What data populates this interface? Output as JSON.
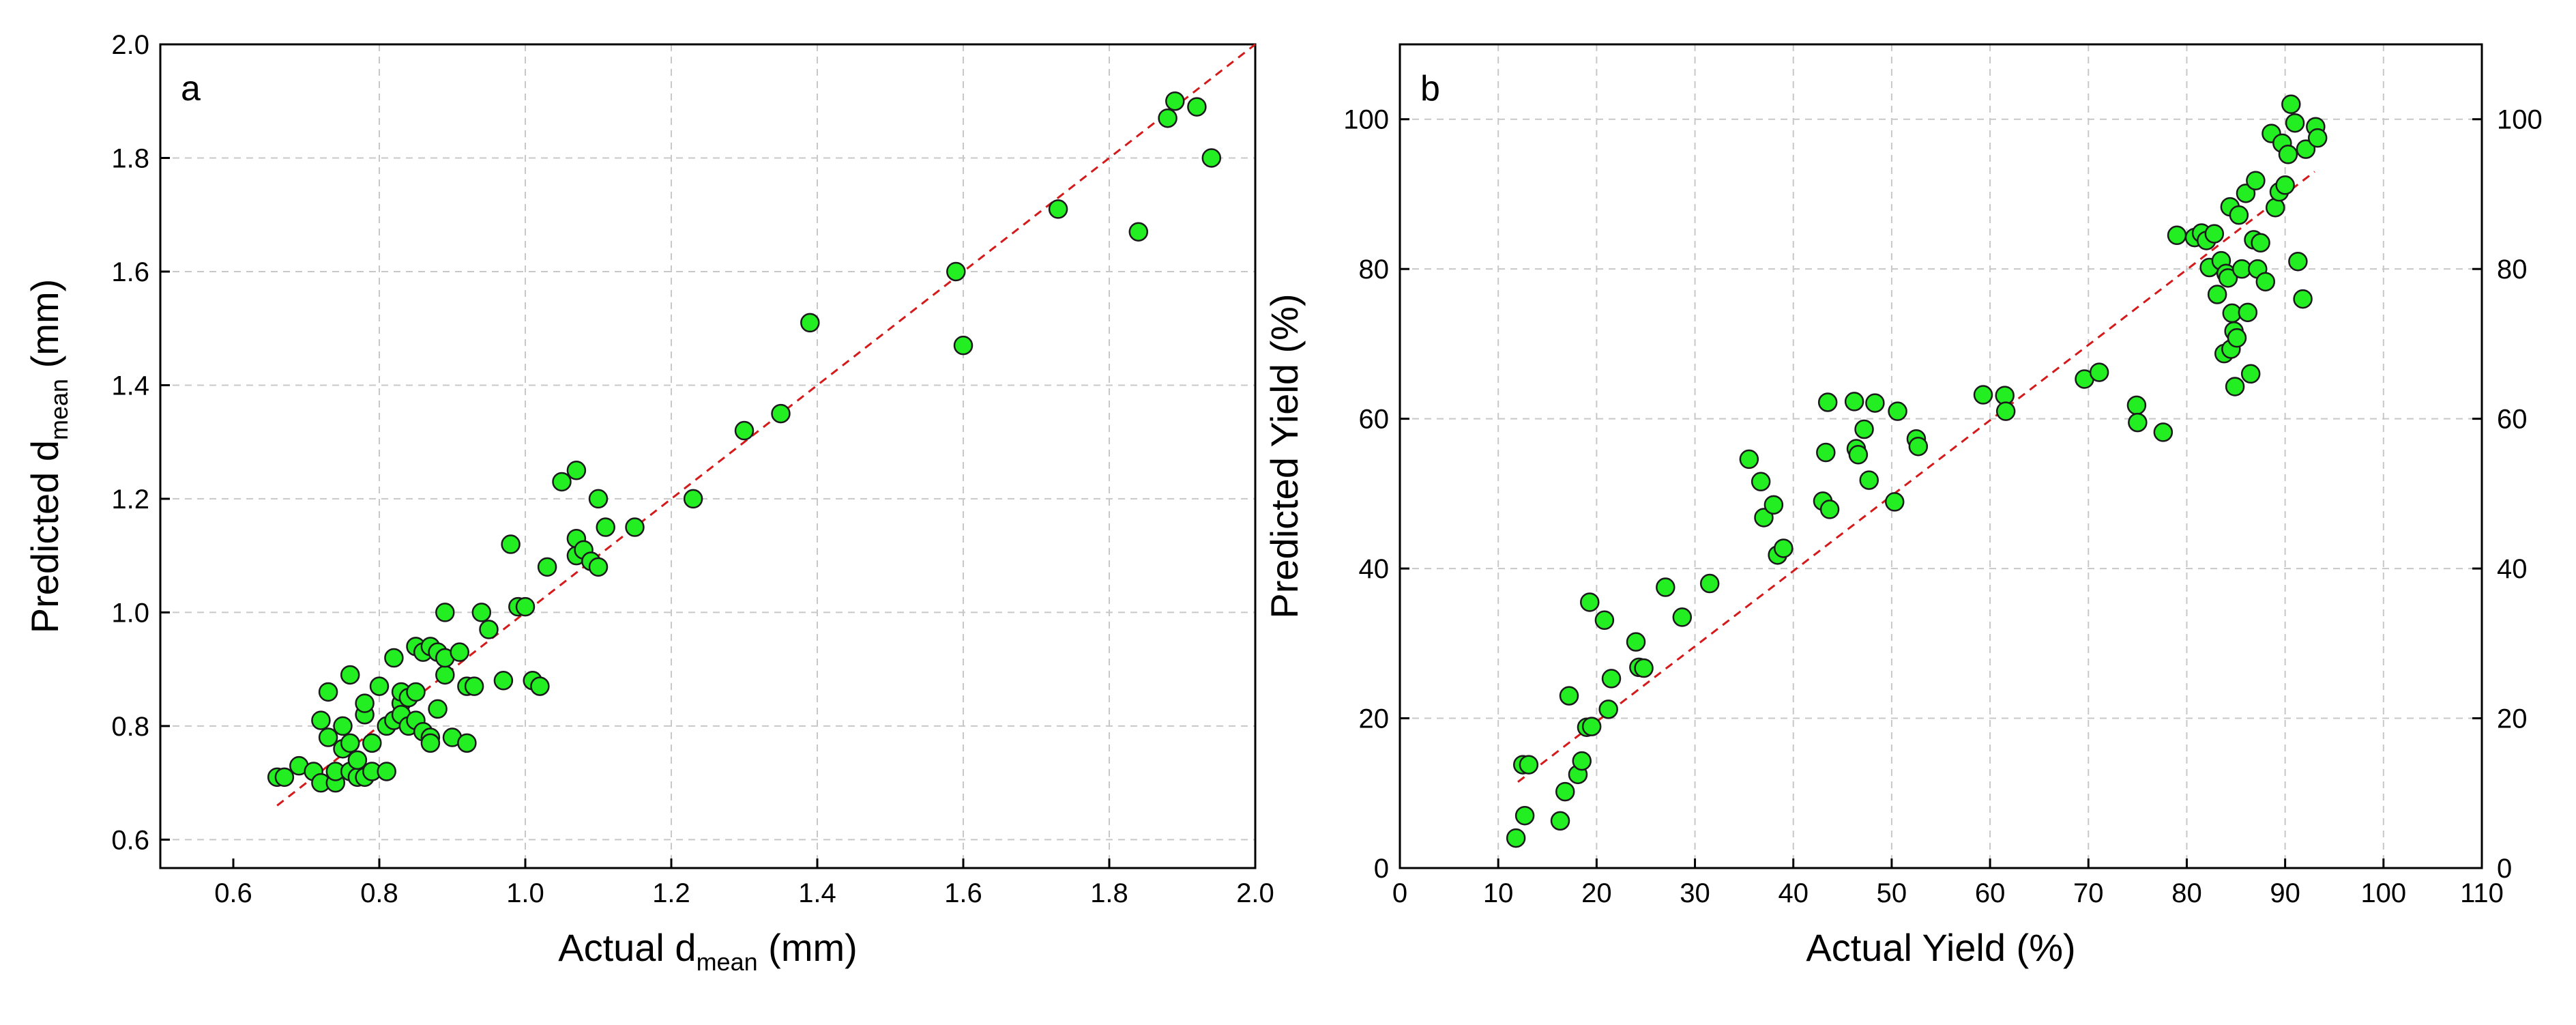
{
  "chart_data": [
    {
      "type": "scatter",
      "panel_label": "a",
      "xlabel": {
        "main": "Actual d",
        "sub": "mean",
        "unit": " (mm)"
      },
      "ylabel": {
        "main": "Predicted d",
        "sub": "mean",
        "unit": " (mm)"
      },
      "xlim": [
        0.5,
        2.0
      ],
      "ylim": [
        0.55,
        2.0
      ],
      "xticks": [
        0.6,
        0.8,
        1.0,
        1.2,
        1.4,
        1.6,
        1.8,
        2.0
      ],
      "xtick_labels": [
        "0.6",
        "0.8",
        "1.0",
        "1.2",
        "1.4",
        "1.6",
        "1.8",
        "2.0"
      ],
      "yticks": [
        0.6,
        0.8,
        1.0,
        1.2,
        1.4,
        1.6,
        1.8,
        2.0
      ],
      "ytick_labels": [
        "0.6",
        "0.8",
        "1.0",
        "1.2",
        "1.4",
        "1.6",
        "1.8",
        "2.0"
      ],
      "xgrid": [
        0.8,
        1.0,
        1.2,
        1.4,
        1.6,
        1.8
      ],
      "ygrid": [
        0.6,
        0.8,
        1.0,
        1.2,
        1.4,
        1.6,
        1.8
      ],
      "fit_line": {
        "x": [
          0.66,
          2.0
        ],
        "y": [
          0.66,
          2.0
        ]
      },
      "x": [
        0.66,
        0.67,
        0.69,
        0.71,
        0.72,
        0.72,
        0.73,
        0.73,
        0.74,
        0.74,
        0.75,
        0.75,
        0.76,
        0.76,
        0.76,
        0.77,
        0.77,
        0.78,
        0.78,
        0.78,
        0.79,
        0.79,
        0.8,
        0.81,
        0.81,
        0.82,
        0.82,
        0.83,
        0.83,
        0.83,
        0.84,
        0.84,
        0.85,
        0.85,
        0.85,
        0.86,
        0.86,
        0.87,
        0.87,
        0.87,
        0.88,
        0.88,
        0.89,
        0.89,
        0.89,
        0.9,
        0.91,
        0.92,
        0.92,
        0.93,
        0.94,
        0.95,
        0.97,
        0.98,
        0.99,
        1.0,
        1.01,
        1.02,
        1.03,
        1.05,
        1.07,
        1.07,
        1.07,
        1.08,
        1.09,
        1.1,
        1.1,
        1.11,
        1.15,
        1.23,
        1.3,
        1.35,
        1.39,
        1.59,
        1.6,
        1.73,
        1.84,
        1.88,
        1.89,
        1.92,
        1.94
      ],
      "y": [
        0.71,
        0.71,
        0.73,
        0.72,
        0.7,
        0.81,
        0.86,
        0.78,
        0.7,
        0.72,
        0.8,
        0.76,
        0.77,
        0.89,
        0.72,
        0.71,
        0.74,
        0.82,
        0.84,
        0.71,
        0.72,
        0.77,
        0.87,
        0.72,
        0.8,
        0.92,
        0.81,
        0.84,
        0.86,
        0.82,
        0.85,
        0.8,
        0.94,
        0.81,
        0.86,
        0.93,
        0.79,
        0.78,
        0.77,
        0.94,
        0.83,
        0.93,
        0.89,
        0.92,
        1.0,
        0.78,
        0.93,
        0.87,
        0.77,
        0.87,
        1.0,
        0.97,
        0.88,
        1.12,
        1.01,
        1.01,
        0.88,
        0.87,
        1.08,
        1.23,
        1.25,
        1.13,
        1.1,
        1.11,
        1.09,
        1.2,
        1.08,
        1.15,
        1.15,
        1.2,
        1.32,
        1.35,
        1.51,
        1.6,
        1.47,
        1.71,
        1.67,
        1.87,
        1.9,
        1.89,
        1.8
      ]
    },
    {
      "type": "scatter",
      "panel_label": "b",
      "xlabel": "Actual Yield (%)",
      "ylabel": "Predicted Yield (%)",
      "xlim": [
        0,
        110
      ],
      "ylim": [
        0,
        110
      ],
      "xticks": [
        0,
        10,
        20,
        30,
        40,
        50,
        60,
        70,
        80,
        90,
        100,
        110
      ],
      "xtick_labels": [
        "0",
        "10",
        "20",
        "30",
        "40",
        "50",
        "60",
        "70",
        "80",
        "90",
        "100",
        "110"
      ],
      "yticks": [
        0,
        20,
        40,
        60,
        80,
        100
      ],
      "ytick_labels": [
        "0",
        "20",
        "40",
        "60",
        "80",
        "100"
      ],
      "right_yticks": [
        0,
        20,
        40,
        60,
        80,
        100
      ],
      "right_ytick_labels": [
        "0",
        "20",
        "40",
        "60",
        "80",
        "100"
      ],
      "xgrid": [
        10,
        20,
        30,
        40,
        50,
        60,
        70,
        80,
        90,
        100
      ],
      "ygrid": [
        20,
        40,
        60,
        80,
        100
      ],
      "fit_line": {
        "x": [
          12,
          93
        ],
        "y": [
          11.5,
          93
        ]
      },
      "x": [
        11.8,
        12.5,
        12.7,
        13.1,
        16.3,
        16.8,
        17.2,
        18.1,
        18.5,
        19.0,
        19.3,
        19.5,
        20.8,
        21.2,
        21.5,
        24.0,
        24.3,
        24.8,
        27.0,
        28.7,
        31.5,
        35.5,
        36.7,
        37.0,
        38.0,
        38.4,
        39.0,
        43.0,
        43.3,
        43.5,
        43.7,
        46.2,
        46.4,
        46.6,
        47.2,
        47.7,
        48.3,
        50.3,
        50.6,
        52.5,
        52.7,
        59.3,
        61.5,
        61.6,
        69.6,
        71.1,
        74.9,
        75.0,
        77.6,
        79.0,
        80.8,
        81.5,
        82.0,
        82.3,
        82.8,
        83.1,
        83.5,
        83.8,
        84.0,
        84.2,
        84.4,
        84.5,
        84.6,
        84.8,
        84.9,
        85.1,
        85.3,
        85.6,
        86.0,
        86.2,
        86.5,
        86.8,
        87.0,
        87.2,
        87.5,
        88.0,
        88.6,
        89.0,
        89.4,
        89.7,
        90.0,
        90.3,
        90.6,
        91.0,
        91.3,
        91.8,
        92.1,
        93.1,
        93.3
      ],
      "y": [
        4.0,
        13.8,
        7.0,
        13.8,
        6.3,
        10.2,
        23.0,
        12.5,
        14.3,
        18.8,
        35.5,
        18.9,
        33.1,
        21.2,
        25.3,
        30.2,
        26.8,
        26.7,
        37.5,
        33.5,
        38.0,
        54.6,
        51.6,
        46.8,
        48.5,
        41.8,
        42.7,
        49.0,
        55.5,
        62.2,
        47.9,
        62.3,
        56.0,
        55.2,
        58.6,
        51.8,
        62.1,
        48.9,
        61.0,
        57.3,
        56.3,
        63.2,
        63.1,
        61.0,
        65.3,
        66.2,
        61.8,
        59.5,
        58.2,
        84.5,
        84.2,
        84.8,
        83.8,
        80.2,
        84.7,
        76.6,
        81.1,
        68.7,
        79.4,
        78.8,
        88.3,
        69.3,
        74.1,
        71.7,
        64.3,
        70.8,
        87.2,
        80.0,
        90.1,
        74.2,
        66.0,
        83.9,
        91.8,
        80.0,
        83.5,
        78.3,
        98.1,
        88.2,
        90.3,
        96.8,
        91.2,
        95.3,
        102.0,
        99.5,
        81.0,
        76.0,
        96.0,
        99.0,
        97.5
      ]
    }
  ]
}
